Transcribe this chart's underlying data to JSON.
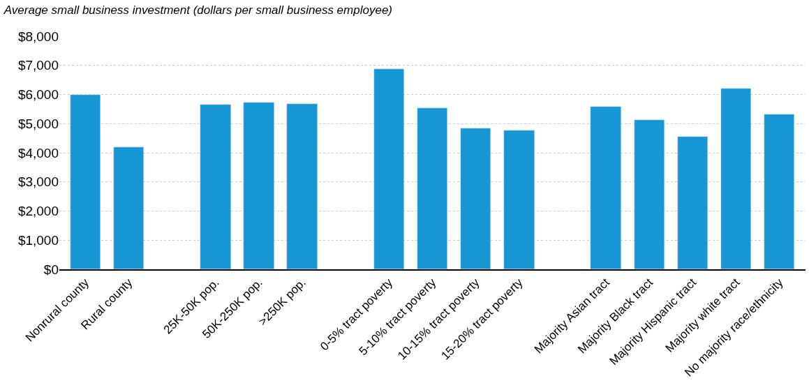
{
  "chart_data": {
    "type": "bar",
    "title": "Average small business investment (dollars per small business employee)",
    "categories": [
      "Nonrural county",
      "Rural county",
      null,
      "25K-50K pop.",
      "50K-250K pop.",
      ">250K pop.",
      null,
      "0-5% tract poverty",
      "5-10% tract poverty",
      "10-15% tract poverty",
      "15-20% tract poverty",
      null,
      "Majority Asian tract",
      "Majority Black tract",
      "Majority Hispanic tract",
      "Majority white tract",
      "No majority race/ethnicity"
    ],
    "values": [
      6000,
      4200,
      null,
      5650,
      5730,
      5680,
      null,
      6870,
      5540,
      4850,
      4760,
      null,
      5570,
      5120,
      4540,
      6200,
      5320
    ],
    "color": "#1696d2",
    "ylim": [
      0,
      8000
    ],
    "yticks": [
      {
        "value": 0,
        "label": "$0"
      },
      {
        "value": 1000,
        "label": "$1,000"
      },
      {
        "value": 2000,
        "label": "$2,000"
      },
      {
        "value": 3000,
        "label": "$3,000"
      },
      {
        "value": 4000,
        "label": "$4,000"
      },
      {
        "value": 5000,
        "label": "$5,000"
      },
      {
        "value": 6000,
        "label": "$6,000"
      },
      {
        "value": 7000,
        "label": "$7,000"
      },
      {
        "value": 8000,
        "label": "$8,000"
      }
    ],
    "grid": "y"
  }
}
